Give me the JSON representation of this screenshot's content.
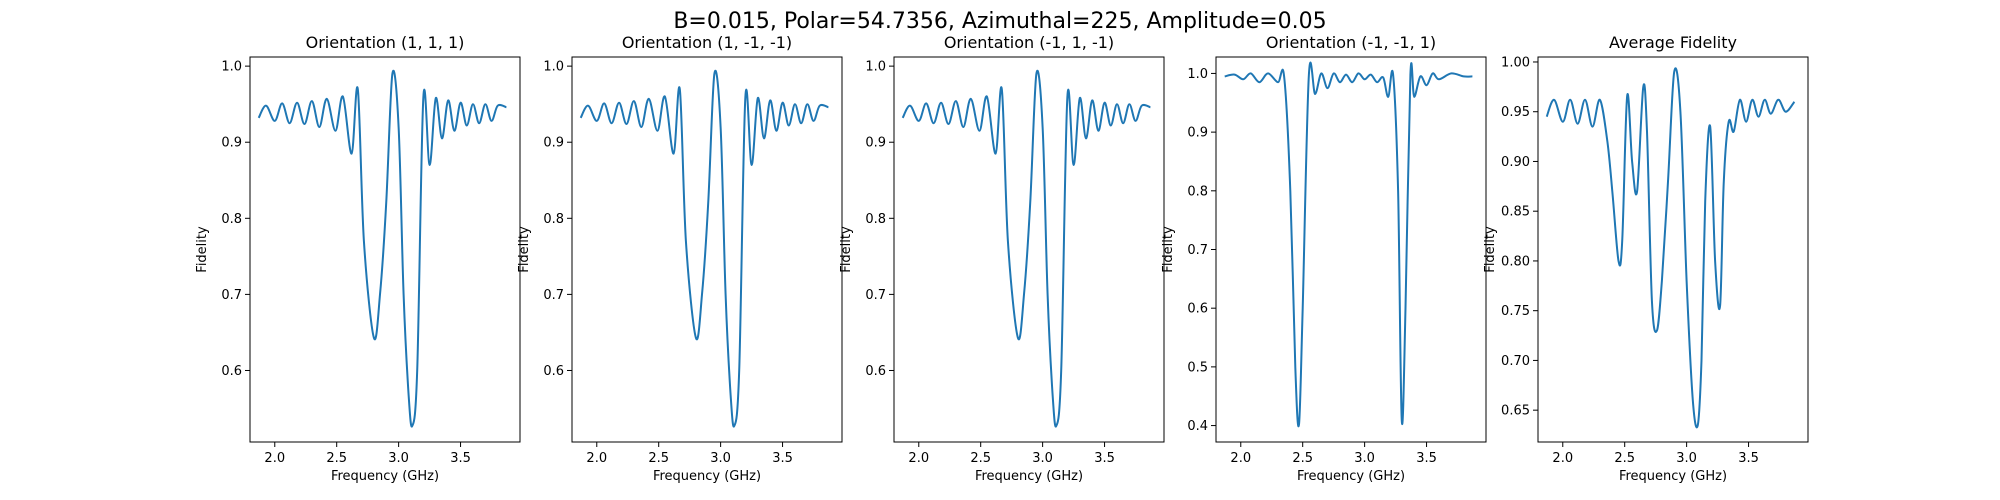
{
  "figure": {
    "suptitle": "B=0.015, Polar=54.7356, Azimuthal=225, Amplitude=0.05"
  },
  "style": {
    "line_color": "#1f77b4"
  },
  "chart_data": [
    {
      "type": "line",
      "title": "Orientation (1, 1, 1)",
      "xlabel": "Frequency (GHz)",
      "ylabel": "Fidelity",
      "xlim": [
        1.8,
        3.98
      ],
      "ylim": [
        0.506,
        1.012
      ],
      "xticks": [
        2.0,
        2.5,
        3.0,
        3.5
      ],
      "xtick_labels": [
        "2.0",
        "2.5",
        "3.0",
        "3.5"
      ],
      "yticks": [
        0.6,
        0.7,
        0.8,
        0.9,
        1.0
      ],
      "ytick_labels": [
        "0.6",
        "0.7",
        "0.8",
        "0.9",
        "1.0"
      ],
      "series": [
        {
          "x": [
            1.87,
            1.93,
            2.0,
            2.06,
            2.12,
            2.18,
            2.24,
            2.3,
            2.36,
            2.42,
            2.49,
            2.55,
            2.62,
            2.67,
            2.72,
            2.8,
            2.85,
            2.9,
            2.95,
            3.0,
            3.04,
            3.08,
            3.11,
            3.15,
            3.2,
            3.25,
            3.3,
            3.35,
            3.4,
            3.45,
            3.5,
            3.55,
            3.6,
            3.65,
            3.7,
            3.75,
            3.8,
            3.87
          ],
          "y": [
            0.932,
            0.948,
            0.928,
            0.951,
            0.925,
            0.952,
            0.924,
            0.954,
            0.92,
            0.957,
            0.915,
            0.96,
            0.885,
            0.97,
            0.77,
            0.643,
            0.7,
            0.82,
            0.99,
            0.92,
            0.7,
            0.57,
            0.527,
            0.6,
            0.96,
            0.87,
            0.958,
            0.905,
            0.955,
            0.915,
            0.952,
            0.922,
            0.95,
            0.925,
            0.95,
            0.928,
            0.948,
            0.946
          ]
        }
      ]
    },
    {
      "type": "line",
      "title": "Orientation (1, -1, -1)",
      "xlabel": "Frequency (GHz)",
      "ylabel": "Fidelity",
      "xlim": [
        1.8,
        3.98
      ],
      "ylim": [
        0.506,
        1.012
      ],
      "xticks": [
        2.0,
        2.5,
        3.0,
        3.5
      ],
      "xtick_labels": [
        "2.0",
        "2.5",
        "3.0",
        "3.5"
      ],
      "yticks": [
        0.6,
        0.7,
        0.8,
        0.9,
        1.0
      ],
      "ytick_labels": [
        "0.6",
        "0.7",
        "0.8",
        "0.9",
        "1.0"
      ],
      "series": [
        {
          "x": [
            1.87,
            1.93,
            2.0,
            2.06,
            2.12,
            2.18,
            2.24,
            2.3,
            2.36,
            2.42,
            2.49,
            2.55,
            2.62,
            2.67,
            2.72,
            2.8,
            2.85,
            2.9,
            2.95,
            3.0,
            3.04,
            3.08,
            3.11,
            3.15,
            3.2,
            3.25,
            3.3,
            3.35,
            3.4,
            3.45,
            3.5,
            3.55,
            3.6,
            3.65,
            3.7,
            3.75,
            3.8,
            3.87
          ],
          "y": [
            0.932,
            0.948,
            0.928,
            0.951,
            0.925,
            0.952,
            0.924,
            0.954,
            0.92,
            0.957,
            0.915,
            0.96,
            0.885,
            0.97,
            0.77,
            0.643,
            0.7,
            0.82,
            0.99,
            0.92,
            0.7,
            0.57,
            0.527,
            0.6,
            0.96,
            0.87,
            0.958,
            0.905,
            0.955,
            0.915,
            0.952,
            0.922,
            0.95,
            0.925,
            0.95,
            0.928,
            0.948,
            0.946
          ]
        }
      ]
    },
    {
      "type": "line",
      "title": "Orientation (-1, 1, -1)",
      "xlabel": "Frequency (GHz)",
      "ylabel": "Fidelity",
      "xlim": [
        1.8,
        3.98
      ],
      "ylim": [
        0.506,
        1.012
      ],
      "xticks": [
        2.0,
        2.5,
        3.0,
        3.5
      ],
      "xtick_labels": [
        "2.0",
        "2.5",
        "3.0",
        "3.5"
      ],
      "yticks": [
        0.6,
        0.7,
        0.8,
        0.9,
        1.0
      ],
      "ytick_labels": [
        "0.6",
        "0.7",
        "0.8",
        "0.9",
        "1.0"
      ],
      "series": [
        {
          "x": [
            1.87,
            1.93,
            2.0,
            2.06,
            2.12,
            2.18,
            2.24,
            2.3,
            2.36,
            2.42,
            2.49,
            2.55,
            2.62,
            2.67,
            2.72,
            2.8,
            2.85,
            2.9,
            2.95,
            3.0,
            3.04,
            3.08,
            3.11,
            3.15,
            3.2,
            3.25,
            3.3,
            3.35,
            3.4,
            3.45,
            3.5,
            3.55,
            3.6,
            3.65,
            3.7,
            3.75,
            3.8,
            3.87
          ],
          "y": [
            0.932,
            0.948,
            0.928,
            0.951,
            0.925,
            0.952,
            0.924,
            0.954,
            0.92,
            0.957,
            0.915,
            0.96,
            0.885,
            0.97,
            0.77,
            0.643,
            0.7,
            0.82,
            0.99,
            0.92,
            0.7,
            0.57,
            0.527,
            0.6,
            0.96,
            0.87,
            0.958,
            0.905,
            0.955,
            0.915,
            0.952,
            0.922,
            0.95,
            0.925,
            0.95,
            0.928,
            0.948,
            0.946
          ]
        }
      ]
    },
    {
      "type": "line",
      "title": "Orientation (-1, -1, 1)",
      "xlabel": "Frequency (GHz)",
      "ylabel": "Fidelity",
      "xlim": [
        1.8,
        3.98
      ],
      "ylim": [
        0.372,
        1.028
      ],
      "xticks": [
        2.0,
        2.5,
        3.0,
        3.5
      ],
      "xtick_labels": [
        "2.0",
        "2.5",
        "3.0",
        "3.5"
      ],
      "yticks": [
        0.4,
        0.5,
        0.6,
        0.7,
        0.8,
        0.9,
        1.0
      ],
      "ytick_labels": [
        "0.4",
        "0.5",
        "0.6",
        "0.7",
        "0.8",
        "0.9",
        "1.0"
      ],
      "series": [
        {
          "x": [
            1.87,
            1.95,
            2.02,
            2.08,
            2.15,
            2.22,
            2.3,
            2.35,
            2.4,
            2.44,
            2.47,
            2.5,
            2.55,
            2.6,
            2.65,
            2.7,
            2.75,
            2.8,
            2.85,
            2.9,
            2.95,
            3.0,
            3.05,
            3.1,
            3.15,
            3.19,
            3.23,
            3.27,
            3.3,
            3.33,
            3.37,
            3.4,
            3.45,
            3.5,
            3.55,
            3.6,
            3.7,
            3.8,
            3.87
          ],
          "y": [
            0.995,
            0.998,
            0.99,
            1.0,
            0.985,
            1.0,
            0.985,
            0.995,
            0.8,
            0.5,
            0.402,
            0.6,
            0.998,
            0.965,
            1.0,
            0.975,
            1.0,
            0.985,
            0.998,
            0.985,
            1.0,
            0.99,
            0.998,
            0.985,
            0.993,
            0.96,
            0.998,
            0.8,
            0.408,
            0.6,
            0.998,
            0.96,
            0.995,
            0.98,
            1.0,
            0.99,
            1.0,
            0.995,
            0.995
          ]
        }
      ]
    },
    {
      "type": "line",
      "title": "Average Fidelity",
      "xlabel": "Frequency (GHz)",
      "ylabel": "Fidelity",
      "xlim": [
        1.8,
        3.98
      ],
      "ylim": [
        0.618,
        1.005
      ],
      "xticks": [
        2.0,
        2.5,
        3.0,
        3.5
      ],
      "xtick_labels": [
        "2.0",
        "2.5",
        "3.0",
        "3.5"
      ],
      "yticks": [
        0.65,
        0.7,
        0.75,
        0.8,
        0.85,
        0.9,
        0.95,
        1.0
      ],
      "ytick_labels": [
        "0.65",
        "0.70",
        "0.75",
        "0.80",
        "0.85",
        "0.90",
        "0.95",
        "1.00"
      ],
      "series": [
        {
          "x": [
            1.87,
            1.93,
            2.0,
            2.06,
            2.12,
            2.18,
            2.24,
            2.3,
            2.36,
            2.4,
            2.45,
            2.48,
            2.52,
            2.56,
            2.6,
            2.65,
            2.68,
            2.72,
            2.76,
            2.8,
            2.85,
            2.9,
            2.95,
            3.0,
            3.05,
            3.09,
            3.12,
            3.15,
            3.19,
            3.23,
            3.27,
            3.3,
            3.34,
            3.38,
            3.43,
            3.48,
            3.53,
            3.58,
            3.63,
            3.68,
            3.74,
            3.8,
            3.87
          ],
          "y": [
            0.945,
            0.962,
            0.94,
            0.962,
            0.938,
            0.962,
            0.935,
            0.962,
            0.92,
            0.87,
            0.8,
            0.82,
            0.966,
            0.9,
            0.87,
            0.975,
            0.93,
            0.76,
            0.73,
            0.78,
            0.88,
            0.99,
            0.95,
            0.78,
            0.66,
            0.635,
            0.7,
            0.86,
            0.935,
            0.8,
            0.755,
            0.88,
            0.94,
            0.93,
            0.962,
            0.94,
            0.962,
            0.945,
            0.962,
            0.948,
            0.962,
            0.95,
            0.96
          ]
        }
      ]
    }
  ]
}
